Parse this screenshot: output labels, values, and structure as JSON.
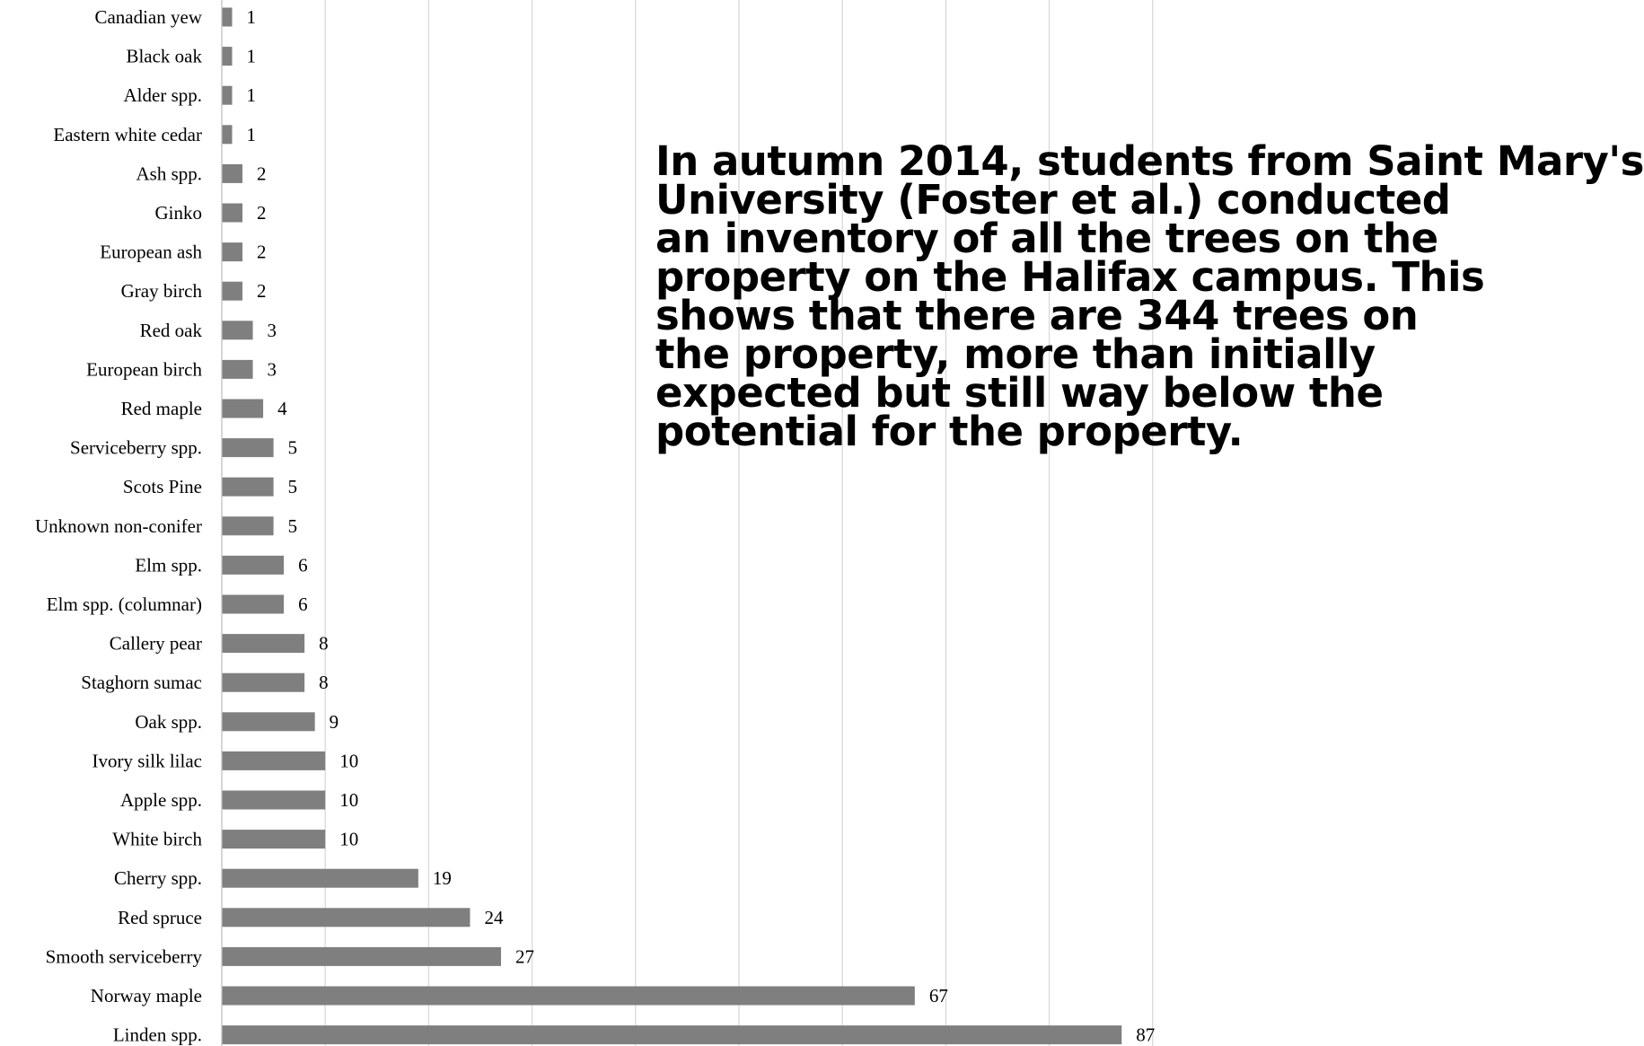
{
  "chart_data": {
    "type": "bar",
    "orientation": "horizontal",
    "categories": [
      "Canadian yew",
      "Black oak",
      "Alder spp.",
      "Eastern white cedar",
      "Ash spp.",
      "Ginko",
      "European ash",
      "Gray birch",
      "Red oak",
      "European birch",
      "Red maple",
      "Serviceberry spp.",
      "Scots Pine",
      "Unknown non-conifer",
      "Elm spp.",
      "Elm spp. (columnar)",
      "Callery pear",
      "Staghorn sumac",
      "Oak spp.",
      "Ivory silk lilac",
      "Apple spp.",
      "White birch",
      "Cherry spp.",
      "Red spruce",
      "Smooth serviceberry",
      "Norway maple",
      "Linden spp."
    ],
    "values": [
      1,
      1,
      1,
      1,
      2,
      2,
      2,
      2,
      3,
      3,
      4,
      5,
      5,
      5,
      6,
      6,
      8,
      8,
      9,
      10,
      10,
      10,
      19,
      24,
      27,
      67,
      87
    ],
    "value_labels": [
      "1",
      "1",
      "1",
      "1",
      "2",
      "2",
      "2",
      "2",
      "3",
      "3",
      "4",
      "5",
      "5",
      "5",
      "6",
      "6",
      "8",
      "8",
      "9",
      "10",
      "10",
      "10",
      "19",
      "24",
      "27",
      "67",
      "87"
    ],
    "xlim": [
      0,
      90
    ],
    "grid_step": 10,
    "grid": true,
    "data_labels": true,
    "bar_color": "#7f7f7f",
    "grid_color": "#d9d9d9",
    "xlabel": "",
    "ylabel": "",
    "title": ""
  },
  "overlay": {
    "lines": [
      "In autumn 2014, students from Saint Mary's",
      "University (Foster et al.) conducted",
      "an inventory of all the trees on the",
      "property on the Halifax campus. This",
      "shows that there are 344 trees on",
      "the property, more than initially",
      "expected but still way below the",
      "potential for the property."
    ],
    "color": "#000000"
  }
}
